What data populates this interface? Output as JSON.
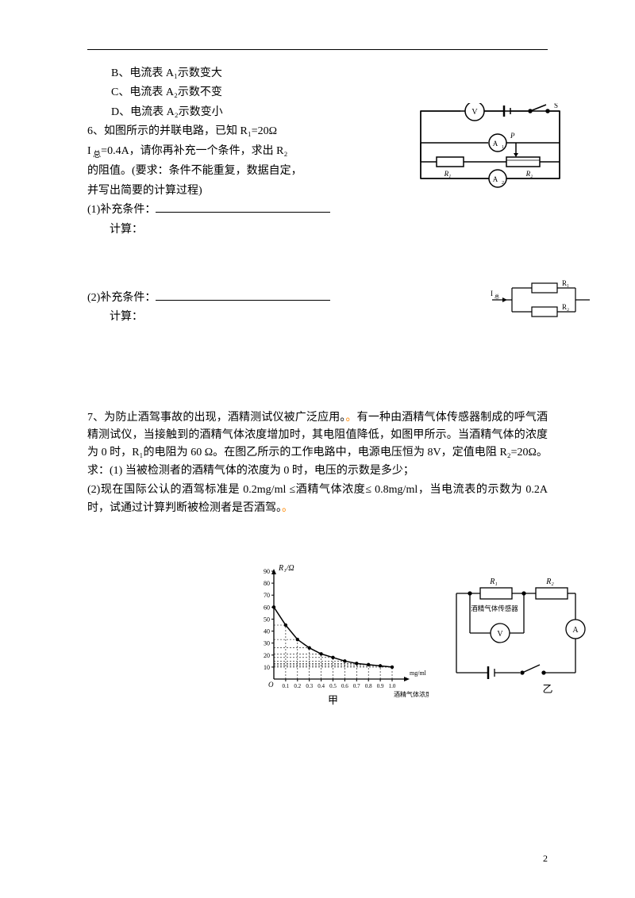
{
  "options": {
    "b": "B、电流表 A₁示数变大",
    "c": "C、电流表 A₂示数不变",
    "d": "D、电流表 A₂示数变小"
  },
  "q6": {
    "line1": "6、如图所示的并联电路，已知 R₁=20Ω",
    "line2_a": "I",
    "line2_sub": " 总",
    "line2_b": "=0.4A，请你再补充一个条件，求出 R₂",
    "line3": "的阻值。(要求：条件不能重复，数据自定，",
    "line4": "并写出简要的计算过程)",
    "sup1": "(1)补充条件：",
    "calc": "计算：",
    "sup2": "(2)补充条件："
  },
  "q7": {
    "p1a": "7、为防止酒驾事故的出现，酒精测试仪被广泛应用。",
    "p1b": "有一种由酒精气体传感器制成的呼气酒精测试仪，当接触到的酒精气体浓度增加时，其电阻值降低，如图甲所示。当酒精气体的浓度为 0 时，R₁的电阻为 60 Ω。在图乙所示的工作电路中，电源电压恒为 8V，定值电阻 R₂=20Ω。求：(1) 当被检测者的酒精气体的浓度为 0 时，电压的示数是多少；",
    "p2": "(2)现在国际公认的酒驾标准是 0.2mg/ml ≤酒精气体浓度≤ 0.8mg/ml，当电流表的示数为 0.2A 时，试通过计算判断被检测者是否酒驾。"
  },
  "circuit1": {
    "labels": {
      "V": "V",
      "A1": "A",
      "A1sub": "1",
      "A2": "A",
      "A2sub": "2",
      "R1": "R₁",
      "R2": "R₂",
      "P": "P",
      "S": "S"
    },
    "stroke": "#000000",
    "fill": "#ffffff"
  },
  "circuit2": {
    "labels": {
      "I": "I",
      "Isub": "总",
      "R1": "R₁",
      "R2": "R₂"
    },
    "stroke": "#000000"
  },
  "graph": {
    "type": "line",
    "xlabel": "酒精气体浓度",
    "xunit": "mg/ml",
    "ylabel": "R₁/Ω",
    "caption": "甲",
    "xlim": [
      0,
      1.0
    ],
    "ylim": [
      0,
      90
    ],
    "xticks": [
      0.1,
      0.2,
      0.3,
      0.4,
      0.5,
      0.6,
      0.7,
      0.8,
      0.9,
      1.0
    ],
    "yticks": [
      10,
      20,
      30,
      40,
      50,
      60,
      70,
      80,
      90
    ],
    "data_x": [
      0,
      0.1,
      0.2,
      0.3,
      0.4,
      0.5,
      0.6,
      0.7,
      0.8,
      0.9,
      1.0
    ],
    "data_y": [
      60,
      45,
      33,
      26,
      21,
      18,
      15,
      13,
      12,
      11,
      10
    ],
    "stroke": "#000000",
    "grid_color": "#000000",
    "background": "#ffffff",
    "fontsize": 8
  },
  "circuit3": {
    "labels": {
      "R1": "R₁",
      "R2": "R₂",
      "V": "V",
      "A": "A",
      "sensor": "酒精气体传感器"
    },
    "caption": "乙",
    "stroke": "#000000"
  },
  "page_number": "2",
  "colors": {
    "text": "#000000",
    "background": "#ffffff",
    "accent": "#ff8800"
  }
}
